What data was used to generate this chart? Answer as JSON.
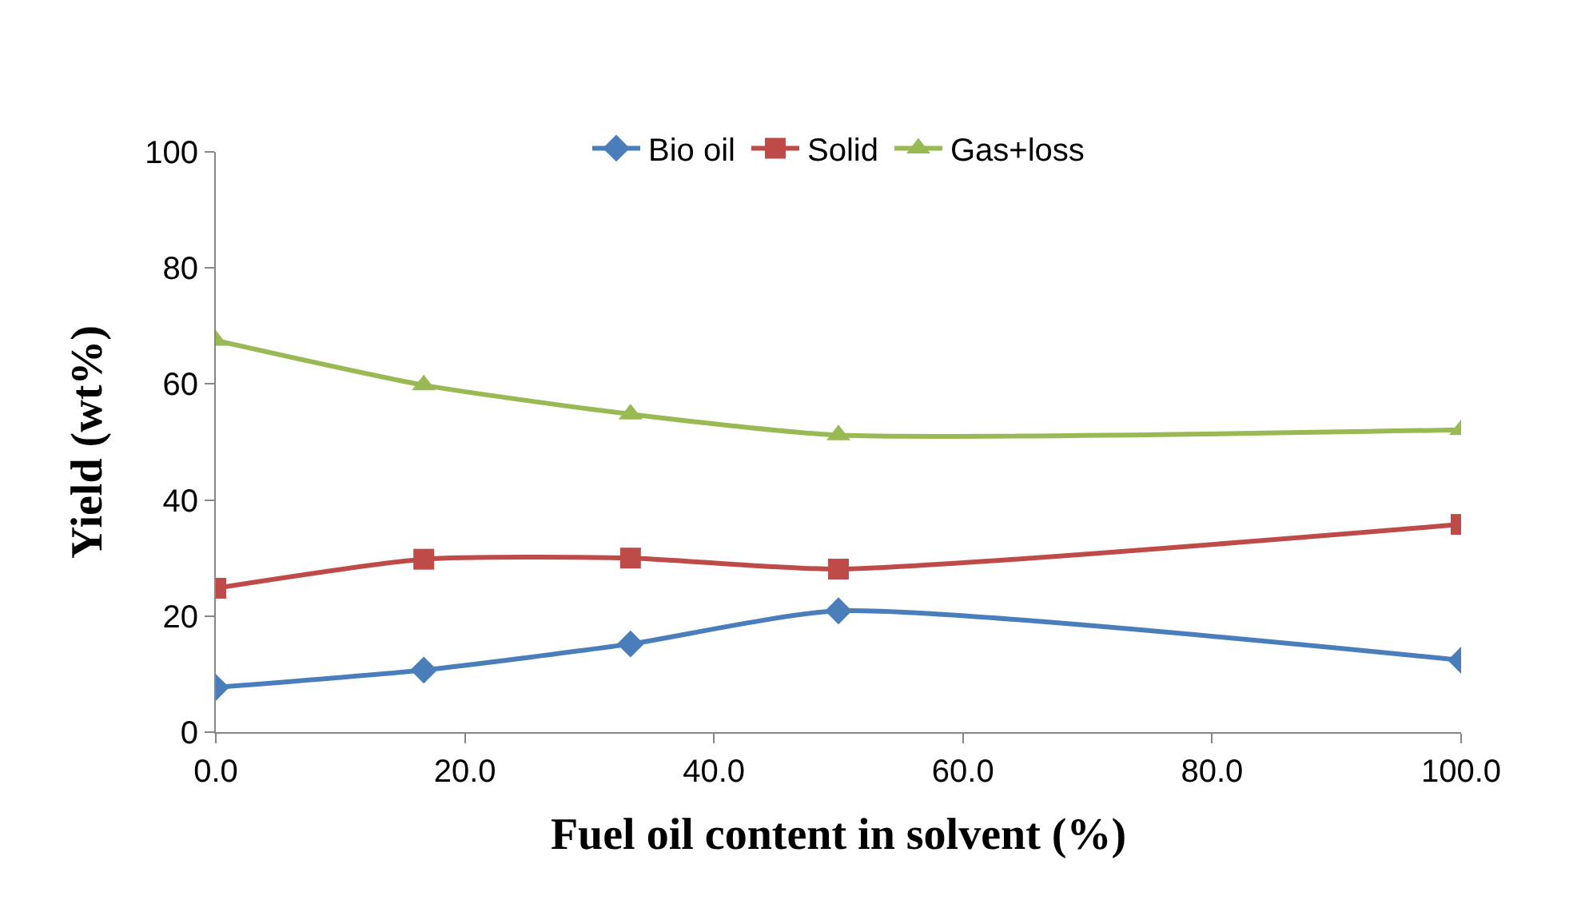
{
  "chart_data": {
    "type": "line",
    "xlabel": "Fuel oil content in solvent (%)",
    "ylabel": "Yield (wt%)",
    "x": [
      0,
      16.7,
      33.3,
      50,
      100
    ],
    "series": [
      {
        "name": "Bio oil",
        "color": "#4a7ebb",
        "marker": "diamond",
        "values": [
          7.7,
          10.7,
          15.2,
          20.9,
          12.4
        ]
      },
      {
        "name": "Solid",
        "color": "#be4b48",
        "marker": "square",
        "values": [
          24.8,
          29.8,
          30.0,
          28.1,
          35.8
        ]
      },
      {
        "name": "Gas+loss",
        "color": "#98b954",
        "marker": "triangle",
        "values": [
          67.5,
          59.8,
          54.8,
          51.2,
          52.1
        ]
      }
    ],
    "xlim": [
      0,
      100
    ],
    "xticks": [
      {
        "value": 0,
        "label": "0.0"
      },
      {
        "value": 20,
        "label": "20.0"
      },
      {
        "value": 40,
        "label": "40.0"
      },
      {
        "value": 60,
        "label": "60.0"
      },
      {
        "value": 80,
        "label": "80.0"
      },
      {
        "value": 100,
        "label": "100.0"
      }
    ],
    "ylim": [
      0,
      100
    ],
    "yticks": [
      0,
      20,
      40,
      60,
      80,
      100
    ],
    "grid": false,
    "legend": "top",
    "line_style": "solid"
  }
}
